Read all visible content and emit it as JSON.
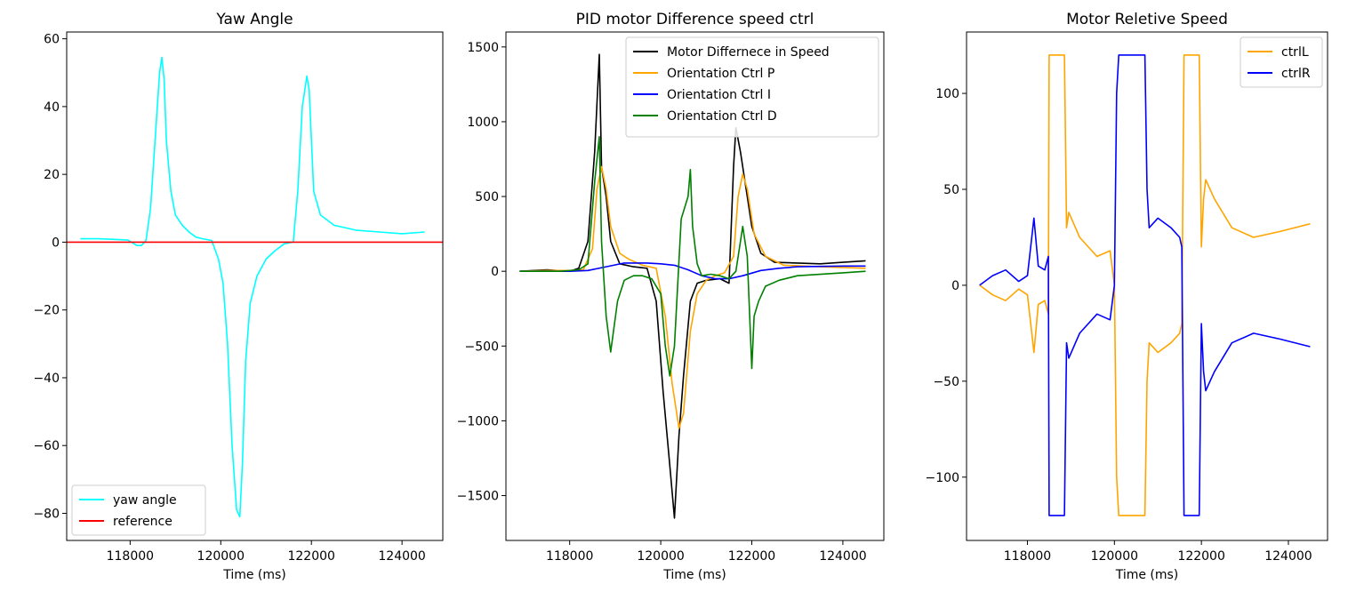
{
  "chart_data": [
    {
      "type": "line",
      "title": "Yaw Angle",
      "xlabel": "Time (ms)",
      "ylabel": "",
      "xlim": [
        116600,
        124900
      ],
      "ylim": [
        -88,
        62
      ],
      "xticks": [
        118000,
        120000,
        122000,
        124000
      ],
      "yticks": [
        -80,
        -60,
        -40,
        -20,
        0,
        20,
        40,
        60
      ],
      "grid": false,
      "legend_position": "lower-left",
      "series": [
        {
          "name": "yaw angle",
          "color": "#00ffff",
          "x": [
            116900,
            117300,
            117700,
            117950,
            118150,
            118250,
            118350,
            118450,
            118550,
            118650,
            118700,
            118750,
            118800,
            118900,
            119000,
            119150,
            119300,
            119450,
            119600,
            119800,
            119950,
            120050,
            120150,
            120250,
            120350,
            120420,
            120480,
            120550,
            120650,
            120800,
            121000,
            121200,
            121400,
            121600,
            121700,
            121800,
            121900,
            121950,
            122050,
            122200,
            122500,
            123000,
            123500,
            124000,
            124500
          ],
          "values": [
            1,
            1,
            0.8,
            0.6,
            -1,
            -1,
            0.5,
            10,
            30,
            50,
            54.5,
            48,
            30,
            15,
            8,
            5,
            3,
            1.5,
            1,
            0.5,
            -5,
            -12,
            -30,
            -60,
            -79,
            -81,
            -65,
            -35,
            -18,
            -10,
            -5,
            -2.5,
            -0.5,
            0,
            15,
            40,
            49,
            45,
            15,
            8,
            5,
            3.5,
            3,
            2.5,
            3
          ]
        },
        {
          "name": "reference",
          "color": "#ff0000",
          "x": [
            116600,
            124900
          ],
          "values": [
            0,
            0
          ]
        }
      ]
    },
    {
      "type": "line",
      "title": "PID motor Difference speed ctrl",
      "xlabel": "Time (ms)",
      "ylabel": "",
      "xlim": [
        116600,
        124900
      ],
      "ylim": [
        -1800,
        1600
      ],
      "xticks": [
        118000,
        120000,
        122000,
        124000
      ],
      "yticks": [
        -1500,
        -1000,
        -500,
        0,
        500,
        1000,
        1500
      ],
      "grid": false,
      "legend_position": "upper-right",
      "series": [
        {
          "name": "Motor Differnece in Speed",
          "color": "#000000",
          "x": [
            116900,
            117500,
            118000,
            118200,
            118400,
            118550,
            118650,
            118700,
            118800,
            118900,
            119100,
            119400,
            119700,
            119900,
            120050,
            120200,
            120300,
            120400,
            120500,
            120650,
            120800,
            121000,
            121300,
            121500,
            121600,
            121650,
            121750,
            121900,
            122000,
            122200,
            122500,
            123000,
            123500,
            124000,
            124500
          ],
          "values": [
            0,
            10,
            0,
            20,
            200,
            800,
            1450,
            700,
            500,
            200,
            50,
            30,
            20,
            -200,
            -800,
            -1300,
            -1650,
            -1100,
            -700,
            -200,
            -80,
            -60,
            -50,
            -80,
            700,
            960,
            800,
            500,
            300,
            120,
            60,
            55,
            50,
            60,
            70
          ]
        },
        {
          "name": "Orientation Ctrl P",
          "color": "#ffa500",
          "x": [
            116900,
            117500,
            118000,
            118300,
            118500,
            118600,
            118700,
            118800,
            118900,
            119100,
            119300,
            119600,
            119900,
            120100,
            120250,
            120400,
            120500,
            120650,
            120800,
            121000,
            121200,
            121400,
            121600,
            121700,
            121800,
            121900,
            122050,
            122300,
            122700,
            123500,
            124500
          ],
          "values": [
            0,
            5,
            5,
            10,
            150,
            550,
            700,
            550,
            300,
            120,
            80,
            40,
            20,
            -300,
            -750,
            -1050,
            -950,
            -400,
            -150,
            -60,
            -30,
            -10,
            100,
            500,
            650,
            550,
            250,
            100,
            40,
            30,
            20
          ]
        },
        {
          "name": "Orientation Ctrl I",
          "color": "#0000ff",
          "x": [
            116900,
            118000,
            118400,
            118800,
            119200,
            119700,
            120000,
            120300,
            120600,
            120900,
            121200,
            121500,
            121800,
            122200,
            122600,
            123000,
            124000,
            124500
          ],
          "values": [
            0,
            0,
            5,
            30,
            55,
            55,
            50,
            40,
            10,
            -30,
            -50,
            -50,
            -30,
            5,
            20,
            30,
            35,
            35
          ]
        },
        {
          "name": "Orientation Ctrl D",
          "color": "#008000",
          "x": [
            116900,
            117800,
            118200,
            118400,
            118550,
            118650,
            118700,
            118800,
            118900,
            119050,
            119200,
            119400,
            119600,
            119800,
            120000,
            120100,
            120200,
            120300,
            120450,
            120600,
            120650,
            120700,
            120800,
            120900,
            121100,
            121300,
            121500,
            121650,
            121800,
            121900,
            122000,
            122050,
            122150,
            122300,
            122600,
            123000,
            124000,
            124500
          ],
          "values": [
            0,
            0,
            10,
            50,
            600,
            900,
            200,
            -300,
            -540,
            -200,
            -60,
            -30,
            -30,
            -50,
            -150,
            -500,
            -700,
            -500,
            350,
            500,
            680,
            300,
            50,
            -30,
            -20,
            -30,
            -50,
            0,
            300,
            100,
            -650,
            -300,
            -200,
            -100,
            -60,
            -30,
            -10,
            0
          ]
        }
      ]
    },
    {
      "type": "line",
      "title": "Motor Reletive Speed",
      "xlabel": "Time (ms)",
      "ylabel": "",
      "xlim": [
        116600,
        124900
      ],
      "ylim": [
        -133,
        132
      ],
      "xticks": [
        118000,
        120000,
        122000,
        124000
      ],
      "yticks": [
        -100,
        -50,
        0,
        50,
        100
      ],
      "grid": false,
      "legend_position": "upper-right",
      "series": [
        {
          "name": "ctrlL",
          "color": "#ffa500",
          "x": [
            116900,
            117200,
            117500,
            117800,
            118000,
            118150,
            118250,
            118400,
            118480,
            118500,
            118850,
            118900,
            118950,
            119200,
            119600,
            119900,
            120000,
            120050,
            120100,
            120550,
            120700,
            120750,
            120800,
            121000,
            121300,
            121500,
            121550,
            121600,
            121950,
            122000,
            122050,
            122100,
            122300,
            122700,
            123200,
            123800,
            124500
          ],
          "values": [
            0,
            -5,
            -8,
            -2,
            -5,
            -35,
            -10,
            -8,
            -15,
            120,
            120,
            30,
            38,
            25,
            15,
            18,
            0,
            -100,
            -120,
            -120,
            -120,
            -50,
            -30,
            -35,
            -30,
            -25,
            -20,
            120,
            120,
            20,
            45,
            55,
            45,
            30,
            25,
            28,
            32
          ]
        },
        {
          "name": "ctrlR",
          "color": "#0000ff",
          "x": [
            116900,
            117200,
            117500,
            117800,
            118000,
            118150,
            118250,
            118400,
            118480,
            118500,
            118850,
            118900,
            118950,
            119200,
            119600,
            119900,
            120000,
            120050,
            120100,
            120550,
            120700,
            120750,
            120800,
            121000,
            121300,
            121500,
            121550,
            121600,
            121950,
            122000,
            122050,
            122100,
            122300,
            122700,
            123200,
            123800,
            124500
          ],
          "values": [
            0,
            5,
            8,
            2,
            5,
            35,
            10,
            8,
            15,
            -120,
            -120,
            -30,
            -38,
            -25,
            -15,
            -18,
            0,
            100,
            120,
            120,
            120,
            50,
            30,
            35,
            30,
            25,
            20,
            -120,
            -120,
            -20,
            -45,
            -55,
            -45,
            -30,
            -25,
            -28,
            -32
          ]
        }
      ]
    }
  ]
}
